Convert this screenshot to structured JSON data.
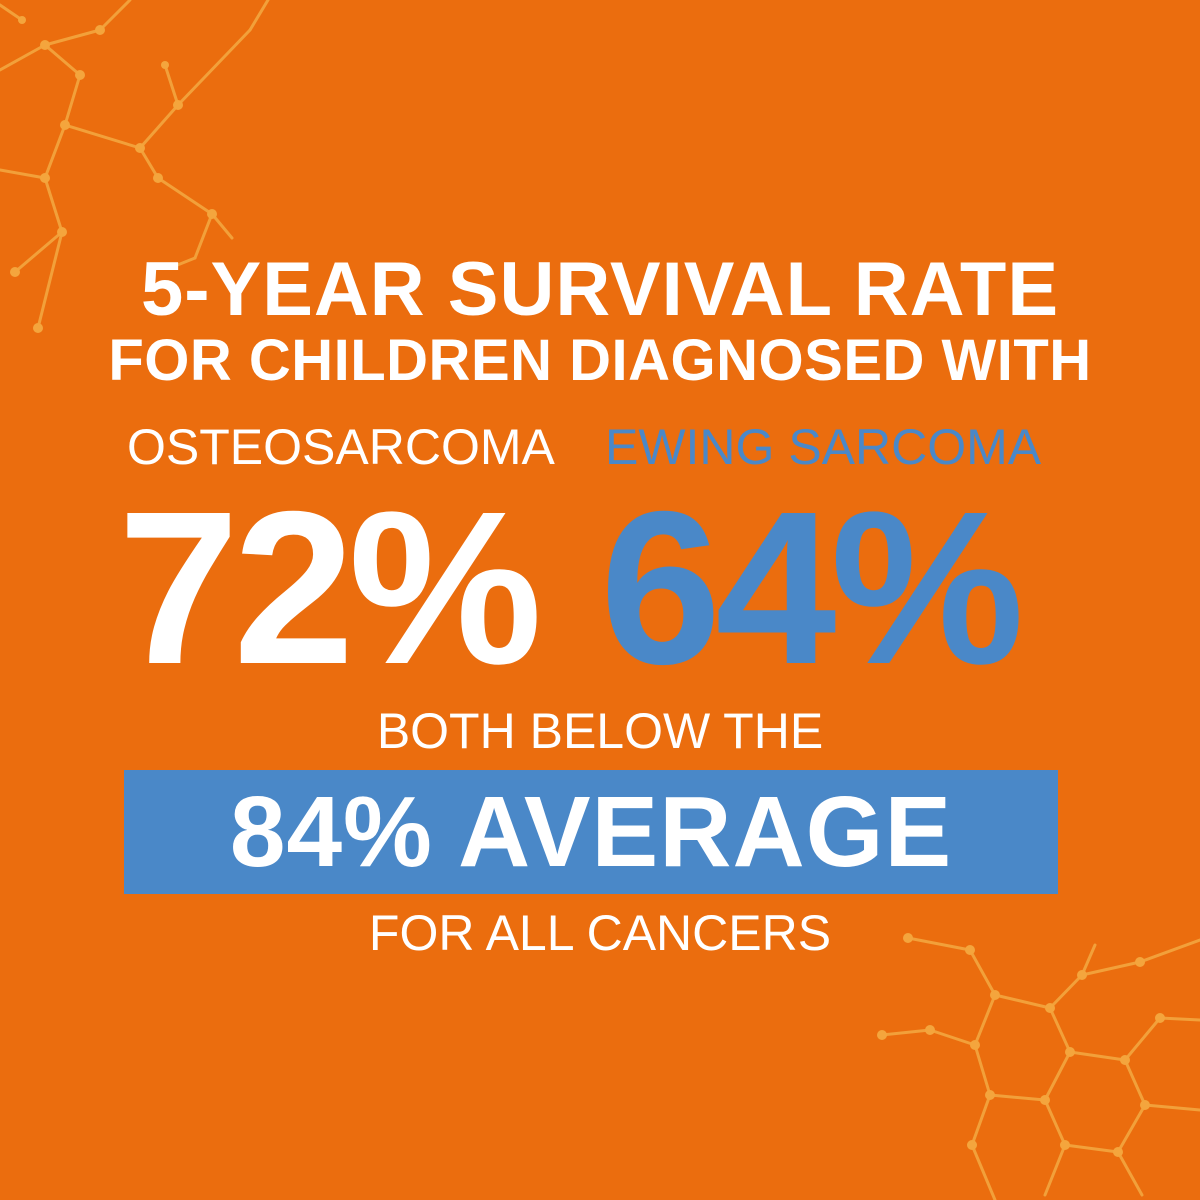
{
  "colors": {
    "background": "#EB6D0E",
    "primary_text": "#FFFFFF",
    "accent_blue": "#4A88C8",
    "network_decoration": "#F4A53D"
  },
  "headline": {
    "line1": "5-YEAR SURVIVAL RATE",
    "line2": "FOR CHILDREN DIAGNOSED WITH"
  },
  "stats": [
    {
      "label": "OSTEOSARCOMA",
      "value": "72%",
      "color": "#FFFFFF"
    },
    {
      "label": "EWING SARCOMA",
      "value": "64%",
      "color": "#4A88C8"
    }
  ],
  "comparison": {
    "lead": "BOTH BELOW THE",
    "highlight": "84% AVERAGE",
    "tail": "FOR ALL CANCERS"
  },
  "decorations": [
    "molecule-network-top-left",
    "molecule-network-bottom-right"
  ]
}
